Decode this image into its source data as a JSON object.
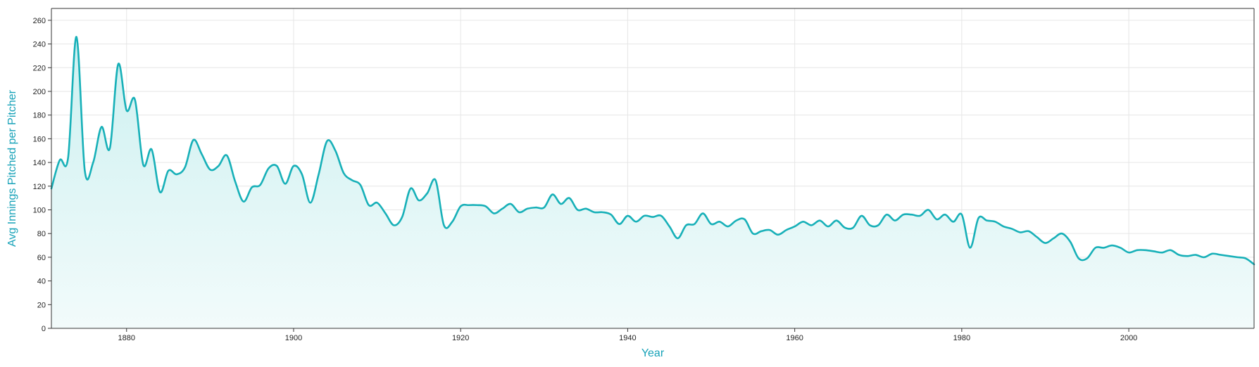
{
  "chart_data": {
    "type": "area",
    "title": "",
    "xlabel": "Year",
    "ylabel": "Avg Innings Pitched per Pitcher",
    "xlim": [
      1871,
      2015
    ],
    "ylim": [
      0,
      270
    ],
    "x_ticks": [
      "1880",
      "1900",
      "1920",
      "1940",
      "1960",
      "1980",
      "2000"
    ],
    "y_ticks": [
      "0",
      "20",
      "40",
      "60",
      "80",
      "100",
      "120",
      "140",
      "160",
      "180",
      "200",
      "220",
      "240",
      "260"
    ],
    "grid": true,
    "colors": {
      "line": "#17b0b8",
      "fill_top": "#ccf0f0",
      "fill_bottom": "#f2fbfb",
      "axis_title": "#17a2b8"
    },
    "series": [
      {
        "x": [
          1871,
          1872,
          1873,
          1874,
          1875,
          1876,
          1877,
          1878,
          1879,
          1880,
          1881,
          1882,
          1883,
          1884,
          1885,
          1886,
          1887,
          1888,
          1889,
          1890,
          1891,
          1892,
          1893,
          1894,
          1895,
          1896,
          1897,
          1898,
          1899,
          1900,
          1901,
          1902,
          1903,
          1904,
          1905,
          1906,
          1907,
          1908,
          1909,
          1910,
          1911,
          1912,
          1913,
          1914,
          1915,
          1916,
          1917,
          1918,
          1919,
          1920,
          1921,
          1922,
          1923,
          1924,
          1925,
          1926,
          1927,
          1928,
          1929,
          1930,
          1931,
          1932,
          1933,
          1934,
          1935,
          1936,
          1937,
          1938,
          1939,
          1940,
          1941,
          1942,
          1943,
          1944,
          1945,
          1946,
          1947,
          1948,
          1949,
          1950,
          1951,
          1952,
          1953,
          1954,
          1955,
          1956,
          1957,
          1958,
          1959,
          1960,
          1961,
          1962,
          1963,
          1964,
          1965,
          1966,
          1967,
          1968,
          1969,
          1970,
          1971,
          1972,
          1973,
          1974,
          1975,
          1976,
          1977,
          1978,
          1979,
          1980,
          1981,
          1982,
          1983,
          1984,
          1985,
          1986,
          1987,
          1988,
          1989,
          1990,
          1991,
          1992,
          1993,
          1994,
          1995,
          1996,
          1997,
          1998,
          1999,
          2000,
          2001,
          2002,
          2003,
          2004,
          2005,
          2006,
          2007,
          2008,
          2009,
          2010,
          2011,
          2012,
          2013,
          2014,
          2015
        ],
        "y": [
          118,
          142,
          144,
          246,
          133,
          140,
          170,
          152,
          223,
          184,
          193,
          138,
          151,
          115,
          133,
          130,
          136,
          159,
          147,
          134,
          137,
          146,
          124,
          107,
          119,
          121,
          135,
          137,
          122,
          137,
          130,
          106,
          130,
          158,
          150,
          131,
          125,
          121,
          104,
          106,
          97,
          87,
          94,
          118,
          108,
          114,
          125,
          87,
          90,
          103,
          104,
          104,
          103,
          97,
          101,
          105,
          98,
          101,
          102,
          102,
          113,
          105,
          110,
          100,
          101,
          98,
          98,
          96,
          88,
          95,
          90,
          95,
          94,
          95,
          86,
          76,
          87,
          88,
          97,
          88,
          90,
          86,
          91,
          92,
          80,
          82,
          83,
          79,
          83,
          86,
          90,
          87,
          91,
          86,
          91,
          85,
          85,
          95,
          87,
          87,
          96,
          91,
          96,
          96,
          95,
          100,
          92,
          96,
          90,
          96,
          68,
          93,
          91,
          90,
          86,
          84,
          81,
          82,
          77,
          72,
          76,
          80,
          73,
          59,
          59,
          68,
          68,
          70,
          68,
          64,
          66,
          66,
          65,
          64,
          66,
          62,
          61,
          62,
          60,
          63,
          62,
          61,
          60,
          59,
          54
        ]
      }
    ]
  }
}
